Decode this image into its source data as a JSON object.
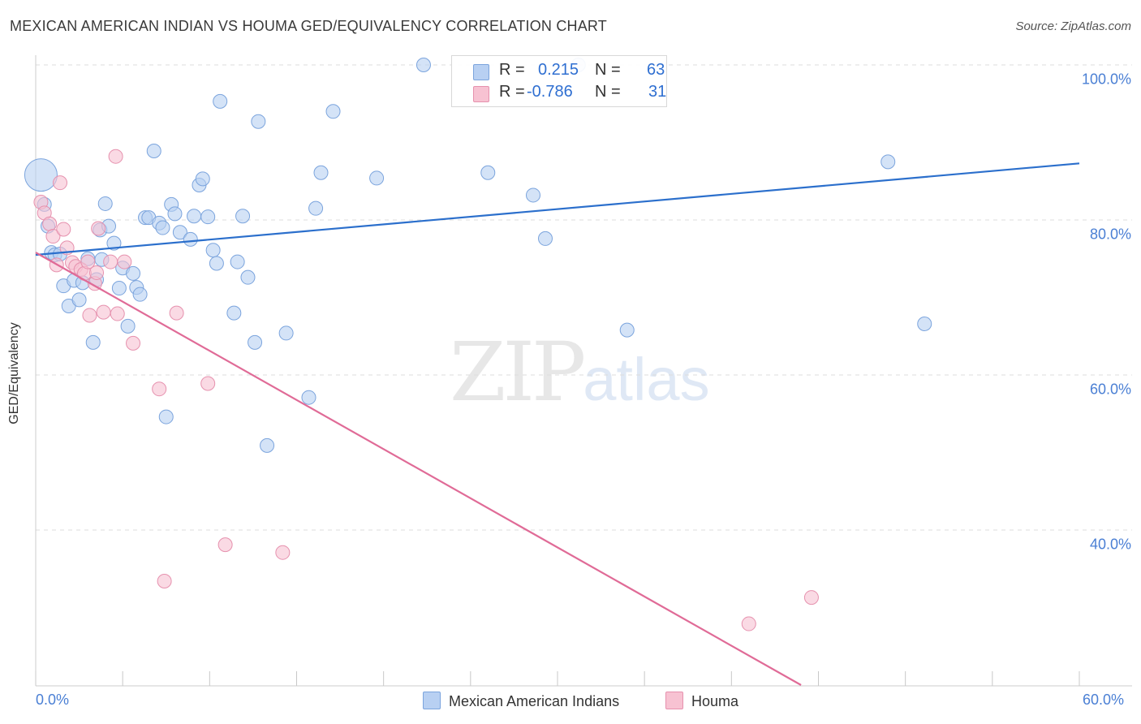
{
  "title": "MEXICAN AMERICAN INDIAN VS HOUMA GED/EQUIVALENCY CORRELATION CHART",
  "source": "Source: ZipAtlas.com",
  "watermark": {
    "zip": "ZIP",
    "atlas": "atlas"
  },
  "legend_top": {
    "rows": [
      {
        "r_label": "R =",
        "r_value": "0.215",
        "n_label": "N =",
        "n_value": "63"
      },
      {
        "r_label": "R =",
        "r_value": "-0.786",
        "n_label": "N =",
        "n_value": "31"
      }
    ]
  },
  "chart_data": {
    "type": "scatter",
    "title": "MEXICAN AMERICAN INDIAN VS HOUMA GED/EQUIVALENCY CORRELATION CHART",
    "xlabel": "",
    "ylabel": "GED/Equivalency",
    "xlim": [
      0,
      60
    ],
    "ylim": [
      20,
      104
    ],
    "x_ticks": [
      "0.0%",
      "60.0%"
    ],
    "y_ticks": [
      {
        "value": 40,
        "label": "40.0%"
      },
      {
        "value": 60,
        "label": "60.0%"
      },
      {
        "value": 80,
        "label": "80.0%"
      },
      {
        "value": 100,
        "label": "100.0%"
      }
    ],
    "grid": true,
    "legend_position": "bottom",
    "colors": {
      "blue_fill": "#b8d0f2",
      "blue_stroke": "#7ba4dd",
      "blue_line": "#2b6fcc",
      "pink_fill": "#f7c2d2",
      "pink_stroke": "#e691ae",
      "pink_line": "#e06b97"
    },
    "series": [
      {
        "name": "Mexican American Indians",
        "color": "#b8d0f2",
        "trend": {
          "x0": 0,
          "y0": 75.5,
          "x1": 60,
          "y1": 87.3
        },
        "points": [
          {
            "x": 0.3,
            "y": 85.8,
            "big": true
          },
          {
            "x": 0.5,
            "y": 82.0
          },
          {
            "x": 0.7,
            "y": 79.2
          },
          {
            "x": 0.9,
            "y": 75.8
          },
          {
            "x": 1.1,
            "y": 75.5
          },
          {
            "x": 1.4,
            "y": 75.6
          },
          {
            "x": 1.6,
            "y": 71.5
          },
          {
            "x": 1.9,
            "y": 68.9
          },
          {
            "x": 2.2,
            "y": 72.2
          },
          {
            "x": 2.5,
            "y": 69.7
          },
          {
            "x": 2.7,
            "y": 71.9
          },
          {
            "x": 3.0,
            "y": 75.0
          },
          {
            "x": 3.3,
            "y": 64.2
          },
          {
            "x": 3.5,
            "y": 72.3
          },
          {
            "x": 3.7,
            "y": 78.7
          },
          {
            "x": 4.0,
            "y": 82.1
          },
          {
            "x": 4.2,
            "y": 79.2
          },
          {
            "x": 4.5,
            "y": 77.0
          },
          {
            "x": 4.8,
            "y": 71.2
          },
          {
            "x": 5.0,
            "y": 73.8
          },
          {
            "x": 5.3,
            "y": 66.3
          },
          {
            "x": 5.6,
            "y": 73.1
          },
          {
            "x": 5.8,
            "y": 71.3
          },
          {
            "x": 6.0,
            "y": 70.4
          },
          {
            "x": 6.3,
            "y": 80.3
          },
          {
            "x": 6.5,
            "y": 80.3
          },
          {
            "x": 6.8,
            "y": 88.9
          },
          {
            "x": 7.1,
            "y": 79.6
          },
          {
            "x": 7.3,
            "y": 79.0
          },
          {
            "x": 7.5,
            "y": 54.6
          },
          {
            "x": 7.8,
            "y": 82.0
          },
          {
            "x": 8.0,
            "y": 80.8
          },
          {
            "x": 8.3,
            "y": 78.4
          },
          {
            "x": 8.9,
            "y": 77.5
          },
          {
            "x": 9.1,
            "y": 80.5
          },
          {
            "x": 9.4,
            "y": 84.5
          },
          {
            "x": 9.6,
            "y": 85.3
          },
          {
            "x": 9.9,
            "y": 80.4
          },
          {
            "x": 10.2,
            "y": 76.1
          },
          {
            "x": 10.4,
            "y": 74.4
          },
          {
            "x": 10.6,
            "y": 95.3
          },
          {
            "x": 11.4,
            "y": 68.0
          },
          {
            "x": 11.6,
            "y": 74.6
          },
          {
            "x": 11.9,
            "y": 80.5
          },
          {
            "x": 12.2,
            "y": 72.6
          },
          {
            "x": 12.6,
            "y": 64.2
          },
          {
            "x": 12.8,
            "y": 92.7
          },
          {
            "x": 13.3,
            "y": 50.9
          },
          {
            "x": 14.4,
            "y": 65.4
          },
          {
            "x": 15.7,
            "y": 57.1
          },
          {
            "x": 16.1,
            "y": 81.5
          },
          {
            "x": 16.4,
            "y": 86.1
          },
          {
            "x": 17.1,
            "y": 94.0
          },
          {
            "x": 19.6,
            "y": 85.4
          },
          {
            "x": 22.3,
            "y": 100.0
          },
          {
            "x": 26.0,
            "y": 86.1
          },
          {
            "x": 28.6,
            "y": 83.2
          },
          {
            "x": 29.3,
            "y": 77.6
          },
          {
            "x": 34.0,
            "y": 65.8
          },
          {
            "x": 49.0,
            "y": 87.5
          },
          {
            "x": 51.1,
            "y": 66.6
          },
          {
            "x": 31.2,
            "y": 100.0
          },
          {
            "x": 3.8,
            "y": 74.9
          }
        ]
      },
      {
        "name": "Houma",
        "color": "#f7c2d2",
        "trend": {
          "x0": 0,
          "y0": 75.8,
          "x1": 44,
          "y1": 20.0
        },
        "points": [
          {
            "x": 0.3,
            "y": 82.3
          },
          {
            "x": 0.5,
            "y": 80.9
          },
          {
            "x": 0.8,
            "y": 79.5
          },
          {
            "x": 1.0,
            "y": 77.9
          },
          {
            "x": 1.2,
            "y": 74.2
          },
          {
            "x": 1.4,
            "y": 84.8
          },
          {
            "x": 1.6,
            "y": 78.8
          },
          {
            "x": 1.8,
            "y": 76.4
          },
          {
            "x": 2.1,
            "y": 74.5
          },
          {
            "x": 2.3,
            "y": 74.0
          },
          {
            "x": 2.6,
            "y": 73.6
          },
          {
            "x": 2.8,
            "y": 73.1
          },
          {
            "x": 3.0,
            "y": 74.6
          },
          {
            "x": 3.1,
            "y": 67.7
          },
          {
            "x": 3.4,
            "y": 71.8
          },
          {
            "x": 3.6,
            "y": 78.9
          },
          {
            "x": 3.9,
            "y": 68.1
          },
          {
            "x": 4.3,
            "y": 74.6
          },
          {
            "x": 4.6,
            "y": 88.2
          },
          {
            "x": 4.7,
            "y": 67.9
          },
          {
            "x": 5.1,
            "y": 74.6
          },
          {
            "x": 5.6,
            "y": 64.1
          },
          {
            "x": 7.1,
            "y": 58.2
          },
          {
            "x": 7.4,
            "y": 33.4
          },
          {
            "x": 8.1,
            "y": 68.0
          },
          {
            "x": 9.9,
            "y": 58.9
          },
          {
            "x": 10.9,
            "y": 38.1
          },
          {
            "x": 14.2,
            "y": 37.1
          },
          {
            "x": 41.0,
            "y": 27.9
          },
          {
            "x": 44.6,
            "y": 31.3
          },
          {
            "x": 3.5,
            "y": 73.2
          }
        ]
      }
    ]
  }
}
